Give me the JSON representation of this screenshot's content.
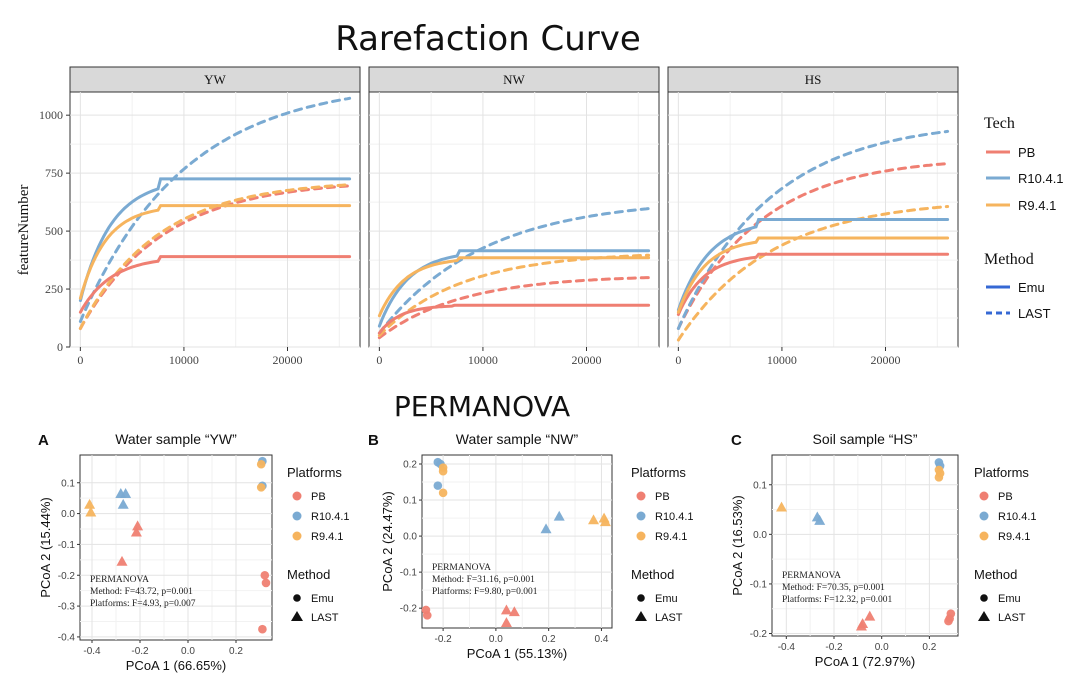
{
  "titles": {
    "top": "Rarefaction Curve",
    "bottom": "PERMANOVA"
  },
  "colors": {
    "PB": "#ef7f72",
    "R10.4.1": "#7aaad2",
    "R9.4.1": "#f6b45e",
    "methodLine": "#3568d4"
  },
  "legend_top": {
    "tech_title": "Tech",
    "tech_items": [
      "PB",
      "R10.4.1",
      "R9.4.1"
    ],
    "method_title": "Method",
    "method_items": [
      "Emu",
      "LAST"
    ]
  },
  "legend_bottom": {
    "platforms_title": "Platforms",
    "platform_items": [
      "PB",
      "R10.4.1",
      "R9.4.1"
    ],
    "method_title": "Method",
    "method_items": [
      "Emu",
      "LAST"
    ]
  },
  "chart_data": [
    {
      "type": "line",
      "title": "Rarefaction Curve",
      "ylabel": "featureNumber",
      "xlabel": "",
      "xlim": [
        -1000,
        27000
      ],
      "ylim": [
        0,
        1100
      ],
      "xticks": [
        0,
        10000,
        20000
      ],
      "yticks": [
        0,
        250,
        500,
        750,
        1000
      ],
      "facets": [
        {
          "label": "YW",
          "series": [
            {
              "tech": "PB",
              "method": "Emu",
              "start": 150,
              "plateau": 390,
              "k": 3000,
              "sat": 7500
            },
            {
              "tech": "R10.4.1",
              "method": "Emu",
              "start": 200,
              "plateau": 725,
              "k": 3000,
              "sat": 7500
            },
            {
              "tech": "R9.4.1",
              "method": "Emu",
              "start": 210,
              "plateau": 610,
              "k": 2500,
              "sat": 7500
            },
            {
              "tech": "PB",
              "method": "LAST",
              "start": 80,
              "plateau": 720,
              "k": 8000
            },
            {
              "tech": "R10.4.1",
              "method": "LAST",
              "start": 110,
              "plateau": 1150,
              "k": 10000
            },
            {
              "tech": "R9.4.1",
              "method": "LAST",
              "start": 80,
              "plateau": 720,
              "k": 7500
            }
          ]
        },
        {
          "label": "NW",
          "series": [
            {
              "tech": "PB",
              "method": "Emu",
              "start": 60,
              "plateau": 180,
              "k": 2000,
              "sat": 7000
            },
            {
              "tech": "R10.4.1",
              "method": "Emu",
              "start": 90,
              "plateau": 415,
              "k": 2800,
              "sat": 7500
            },
            {
              "tech": "R9.4.1",
              "method": "Emu",
              "start": 135,
              "plateau": 385,
              "k": 2500,
              "sat": 7500
            },
            {
              "tech": "PB",
              "method": "LAST",
              "start": 40,
              "plateau": 310,
              "k": 8000
            },
            {
              "tech": "R10.4.1",
              "method": "LAST",
              "start": 60,
              "plateau": 640,
              "k": 10000
            },
            {
              "tech": "R9.4.1",
              "method": "LAST",
              "start": 50,
              "plateau": 410,
              "k": 8000
            }
          ]
        },
        {
          "label": "HS",
          "series": [
            {
              "tech": "PB",
              "method": "Emu",
              "start": 140,
              "plateau": 400,
              "k": 2500,
              "sat": 7500
            },
            {
              "tech": "R10.4.1",
              "method": "Emu",
              "start": 160,
              "plateau": 550,
              "k": 3000,
              "sat": 7500
            },
            {
              "tech": "R9.4.1",
              "method": "Emu",
              "start": 150,
              "plateau": 470,
              "k": 2600,
              "sat": 7500
            },
            {
              "tech": "PB",
              "method": "LAST",
              "start": 80,
              "plateau": 820,
              "k": 8000
            },
            {
              "tech": "R10.4.1",
              "method": "LAST",
              "start": 80,
              "plateau": 980,
              "k": 9000
            },
            {
              "tech": "R9.4.1",
              "method": "LAST",
              "start": 30,
              "plateau": 640,
              "k": 9000
            }
          ]
        }
      ]
    },
    {
      "type": "scatter",
      "panel": "A",
      "title": "Water sample “YW”",
      "xlabel": "PCoA 1 (66.65%)",
      "ylabel": "PCoA 2 (15.44%)",
      "xlim": [
        -0.45,
        0.35
      ],
      "ylim": [
        -0.41,
        0.19
      ],
      "xticks": [
        -0.4,
        -0.2,
        0.0,
        0.2
      ],
      "xticklabels": [
        "-0.4",
        "-0.2",
        "0.0",
        "0.2"
      ],
      "yticks": [
        0.1,
        0.0,
        -0.1,
        -0.2,
        -0.3,
        -0.4
      ],
      "yticklabels": [
        "0.1",
        "0.0",
        "-0.1",
        "-0.2",
        "-0.3",
        "-0.4"
      ],
      "annotation": [
        "PERMANOVA",
        "Method: F=43.72, p=0.001",
        "Platforms: F=4.93, p=0.007"
      ],
      "points": [
        {
          "x": 0.31,
          "y": 0.17,
          "tech": "R10.4.1",
          "method": "Emu"
        },
        {
          "x": 0.305,
          "y": 0.16,
          "tech": "R9.4.1",
          "method": "Emu"
        },
        {
          "x": 0.31,
          "y": 0.09,
          "tech": "R10.4.1",
          "method": "Emu"
        },
        {
          "x": 0.305,
          "y": 0.085,
          "tech": "R9.4.1",
          "method": "Emu"
        },
        {
          "x": 0.32,
          "y": -0.2,
          "tech": "PB",
          "method": "Emu"
        },
        {
          "x": 0.325,
          "y": -0.225,
          "tech": "PB",
          "method": "Emu"
        },
        {
          "x": 0.31,
          "y": -0.375,
          "tech": "PB",
          "method": "Emu"
        },
        {
          "x": -0.28,
          "y": 0.065,
          "tech": "R10.4.1",
          "method": "LAST"
        },
        {
          "x": -0.26,
          "y": 0.065,
          "tech": "R10.4.1",
          "method": "LAST"
        },
        {
          "x": -0.27,
          "y": 0.03,
          "tech": "R10.4.1",
          "method": "LAST"
        },
        {
          "x": -0.41,
          "y": 0.03,
          "tech": "R9.4.1",
          "method": "LAST"
        },
        {
          "x": -0.405,
          "y": 0.005,
          "tech": "R9.4.1",
          "method": "LAST"
        },
        {
          "x": -0.21,
          "y": -0.04,
          "tech": "PB",
          "method": "LAST"
        },
        {
          "x": -0.215,
          "y": -0.06,
          "tech": "PB",
          "method": "LAST"
        },
        {
          "x": -0.275,
          "y": -0.155,
          "tech": "PB",
          "method": "LAST"
        }
      ]
    },
    {
      "type": "scatter",
      "panel": "B",
      "title": "Water sample “NW”",
      "xlabel": "PCoA 1 (55.13%)",
      "ylabel": "PCoA 2 (24.47%)",
      "xlim": [
        -0.28,
        0.44
      ],
      "ylim": [
        -0.255,
        0.225
      ],
      "xticks": [
        -0.2,
        0.0,
        0.2,
        0.4
      ],
      "xticklabels": [
        "-0.2",
        "0.0",
        "0.2",
        "0.4"
      ],
      "yticks": [
        0.2,
        0.1,
        0.0,
        -0.1,
        -0.2
      ],
      "yticklabels": [
        "0.2",
        "0.1",
        "0.0",
        "-0.1",
        "-0.2"
      ],
      "annotation": [
        "PERMANOVA",
        "Method: F=31.16, p=0.001",
        "Platforms: F=9.80, p=0.001"
      ],
      "points": [
        {
          "x": -0.22,
          "y": 0.205,
          "tech": "R10.4.1",
          "method": "Emu"
        },
        {
          "x": -0.21,
          "y": 0.2,
          "tech": "R10.4.1",
          "method": "Emu"
        },
        {
          "x": -0.2,
          "y": 0.19,
          "tech": "R9.4.1",
          "method": "Emu"
        },
        {
          "x": -0.2,
          "y": 0.18,
          "tech": "R9.4.1",
          "method": "Emu"
        },
        {
          "x": -0.22,
          "y": 0.14,
          "tech": "R10.4.1",
          "method": "Emu"
        },
        {
          "x": -0.2,
          "y": 0.12,
          "tech": "R9.4.1",
          "method": "Emu"
        },
        {
          "x": -0.265,
          "y": -0.205,
          "tech": "PB",
          "method": "Emu"
        },
        {
          "x": -0.26,
          "y": -0.22,
          "tech": "PB",
          "method": "Emu"
        },
        {
          "x": 0.24,
          "y": 0.055,
          "tech": "R10.4.1",
          "method": "LAST"
        },
        {
          "x": 0.19,
          "y": 0.02,
          "tech": "R10.4.1",
          "method": "LAST"
        },
        {
          "x": 0.37,
          "y": 0.045,
          "tech": "R9.4.1",
          "method": "LAST"
        },
        {
          "x": 0.41,
          "y": 0.05,
          "tech": "R9.4.1",
          "method": "LAST"
        },
        {
          "x": 0.415,
          "y": 0.04,
          "tech": "R9.4.1",
          "method": "LAST"
        },
        {
          "x": 0.04,
          "y": -0.205,
          "tech": "PB",
          "method": "LAST"
        },
        {
          "x": 0.07,
          "y": -0.21,
          "tech": "PB",
          "method": "LAST"
        },
        {
          "x": 0.04,
          "y": -0.24,
          "tech": "PB",
          "method": "LAST"
        }
      ]
    },
    {
      "type": "scatter",
      "panel": "C",
      "title": "Soil sample “HS”",
      "xlabel": "PCoA 1 (72.97%)",
      "ylabel": "PCoA 2 (16.53%)",
      "xlim": [
        -0.46,
        0.32
      ],
      "ylim": [
        -0.205,
        0.16
      ],
      "xticks": [
        -0.4,
        -0.2,
        0.0,
        0.2
      ],
      "xticklabels": [
        "-0.4",
        "-0.2",
        "0.0",
        "0.2"
      ],
      "yticks": [
        0.1,
        0.0,
        -0.1,
        -0.2
      ],
      "yticklabels": [
        "0.1",
        "0.0",
        "-0.1",
        "-0.2"
      ],
      "annotation": [
        "PERMANOVA",
        "Method: F=70.35, p=0.001",
        "Platforms: F=12.32, p=0.001"
      ],
      "points": [
        {
          "x": 0.24,
          "y": 0.145,
          "tech": "R10.4.1",
          "method": "Emu"
        },
        {
          "x": 0.245,
          "y": 0.138,
          "tech": "R10.4.1",
          "method": "Emu"
        },
        {
          "x": 0.24,
          "y": 0.13,
          "tech": "R9.4.1",
          "method": "Emu"
        },
        {
          "x": 0.245,
          "y": 0.123,
          "tech": "R9.4.1",
          "method": "Emu"
        },
        {
          "x": 0.24,
          "y": 0.115,
          "tech": "R9.4.1",
          "method": "Emu"
        },
        {
          "x": 0.29,
          "y": -0.16,
          "tech": "PB",
          "method": "Emu"
        },
        {
          "x": 0.285,
          "y": -0.17,
          "tech": "PB",
          "method": "Emu"
        },
        {
          "x": 0.28,
          "y": -0.175,
          "tech": "PB",
          "method": "Emu"
        },
        {
          "x": -0.42,
          "y": 0.055,
          "tech": "R9.4.1",
          "method": "LAST"
        },
        {
          "x": -0.27,
          "y": 0.035,
          "tech": "R10.4.1",
          "method": "LAST"
        },
        {
          "x": -0.26,
          "y": 0.028,
          "tech": "R10.4.1",
          "method": "LAST"
        },
        {
          "x": -0.05,
          "y": -0.165,
          "tech": "PB",
          "method": "LAST"
        },
        {
          "x": -0.08,
          "y": -0.18,
          "tech": "PB",
          "method": "LAST"
        },
        {
          "x": -0.085,
          "y": -0.185,
          "tech": "PB",
          "method": "LAST"
        }
      ]
    }
  ]
}
